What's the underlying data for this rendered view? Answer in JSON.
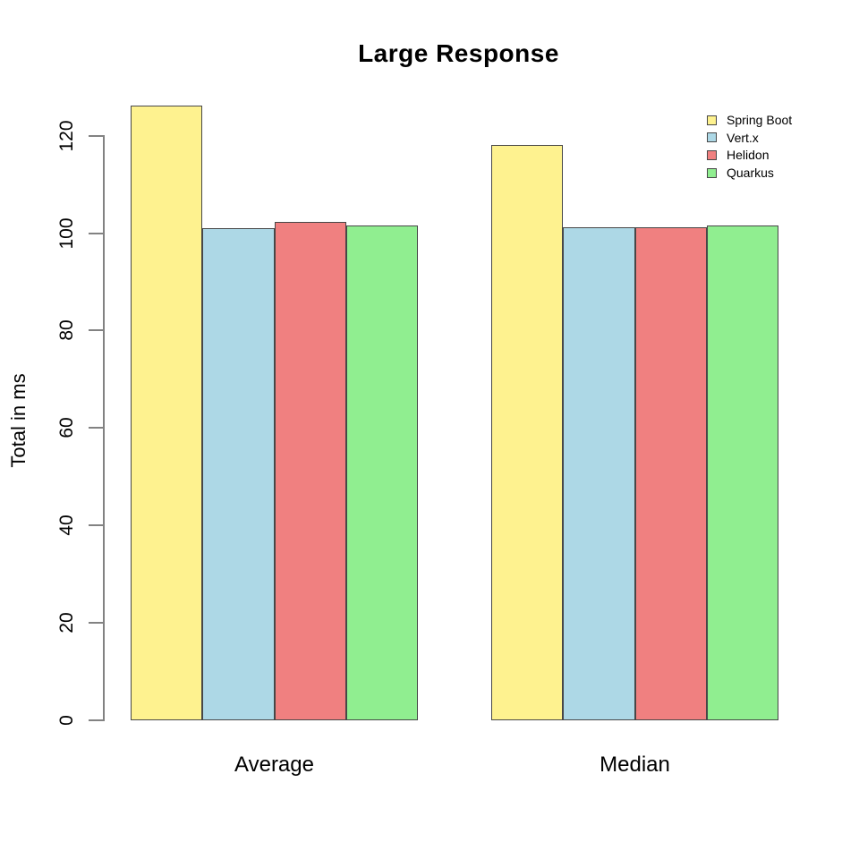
{
  "chart_data": {
    "type": "bar",
    "title": "Large Response",
    "xlabel": "",
    "ylabel": "Total in ms",
    "categories": [
      "Average",
      "Median"
    ],
    "series": [
      {
        "name": "Spring Boot",
        "color": "#FEF28F",
        "values": [
          126.0,
          118.0
        ]
      },
      {
        "name": "Vert.x",
        "color": "#ADD8E6",
        "values": [
          100.9,
          101.1
        ]
      },
      {
        "name": "Helidon",
        "color": "#F08080",
        "values": [
          102.2,
          101.0
        ]
      },
      {
        "name": "Quarkus",
        "color": "#90EE90",
        "values": [
          101.4,
          101.3
        ]
      }
    ],
    "ylim": [
      0,
      126
    ],
    "yticks": [
      0,
      20,
      40,
      60,
      80,
      100,
      120
    ],
    "grid": false,
    "legend_position": "top-right",
    "colors": {
      "background": "#FFFFFF",
      "axis": "#828282",
      "bar_border": "#474747",
      "text": "#000000"
    }
  }
}
